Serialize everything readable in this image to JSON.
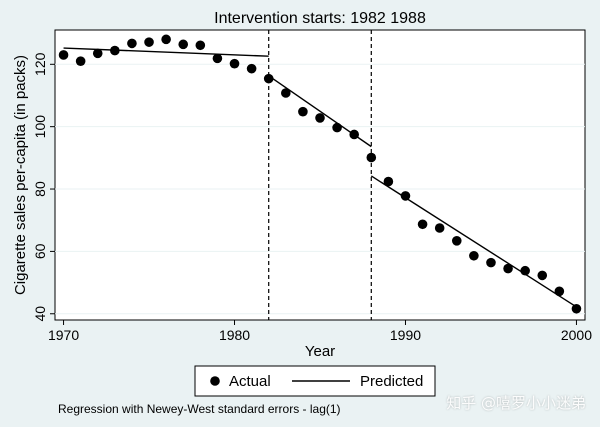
{
  "chart_data": {
    "type": "scatter",
    "title": "Intervention starts: 1982 1988",
    "xlabel": "Year",
    "ylabel": "Cigarette sales per-capita (in packs)",
    "xlim": [
      1969.5,
      2000.5
    ],
    "ylim": [
      38,
      131
    ],
    "xticks": [
      1970,
      1980,
      1990,
      2000
    ],
    "yticks": [
      40,
      60,
      80,
      100,
      120
    ],
    "interventions": [
      1982,
      1988
    ],
    "series": [
      {
        "name": "Actual",
        "kind": "points",
        "x": [
          1970,
          1971,
          1972,
          1973,
          1974,
          1975,
          1976,
          1977,
          1978,
          1979,
          1980,
          1981,
          1982,
          1983,
          1984,
          1985,
          1986,
          1987,
          1988,
          1989,
          1990,
          1991,
          1992,
          1993,
          1994,
          1995,
          1996,
          1997,
          1998,
          1999,
          2000
        ],
        "y": [
          123.0,
          121.0,
          123.5,
          124.4,
          126.7,
          127.1,
          128.0,
          126.4,
          126.1,
          121.9,
          120.2,
          118.6,
          115.4,
          110.8,
          104.8,
          102.8,
          99.7,
          97.5,
          90.1,
          82.4,
          77.8,
          68.7,
          67.5,
          63.4,
          58.6,
          56.4,
          54.5,
          53.8,
          52.3,
          47.2,
          41.6
        ]
      },
      {
        "name": "Predicted",
        "kind": "lines",
        "segments": [
          {
            "x": [
              1970,
              1982
            ],
            "y": [
              125.2,
              122.6
            ]
          },
          {
            "x": [
              1982,
              1988
            ],
            "y": [
              116.3,
              93.6
            ]
          },
          {
            "x": [
              1988,
              2000
            ],
            "y": [
              84.2,
              42.2
            ]
          }
        ]
      }
    ],
    "legend": {
      "position": "bottom",
      "entries": [
        "Actual",
        "Predicted"
      ]
    },
    "note": "Regression with Newey-West standard errors - lag(1)",
    "grid": false,
    "colors": {
      "background": "#eaf2f3",
      "plot_bg": "#ffffff",
      "ink": "#000000"
    }
  },
  "watermark": "知乎 @嘻罗小小迷弟"
}
